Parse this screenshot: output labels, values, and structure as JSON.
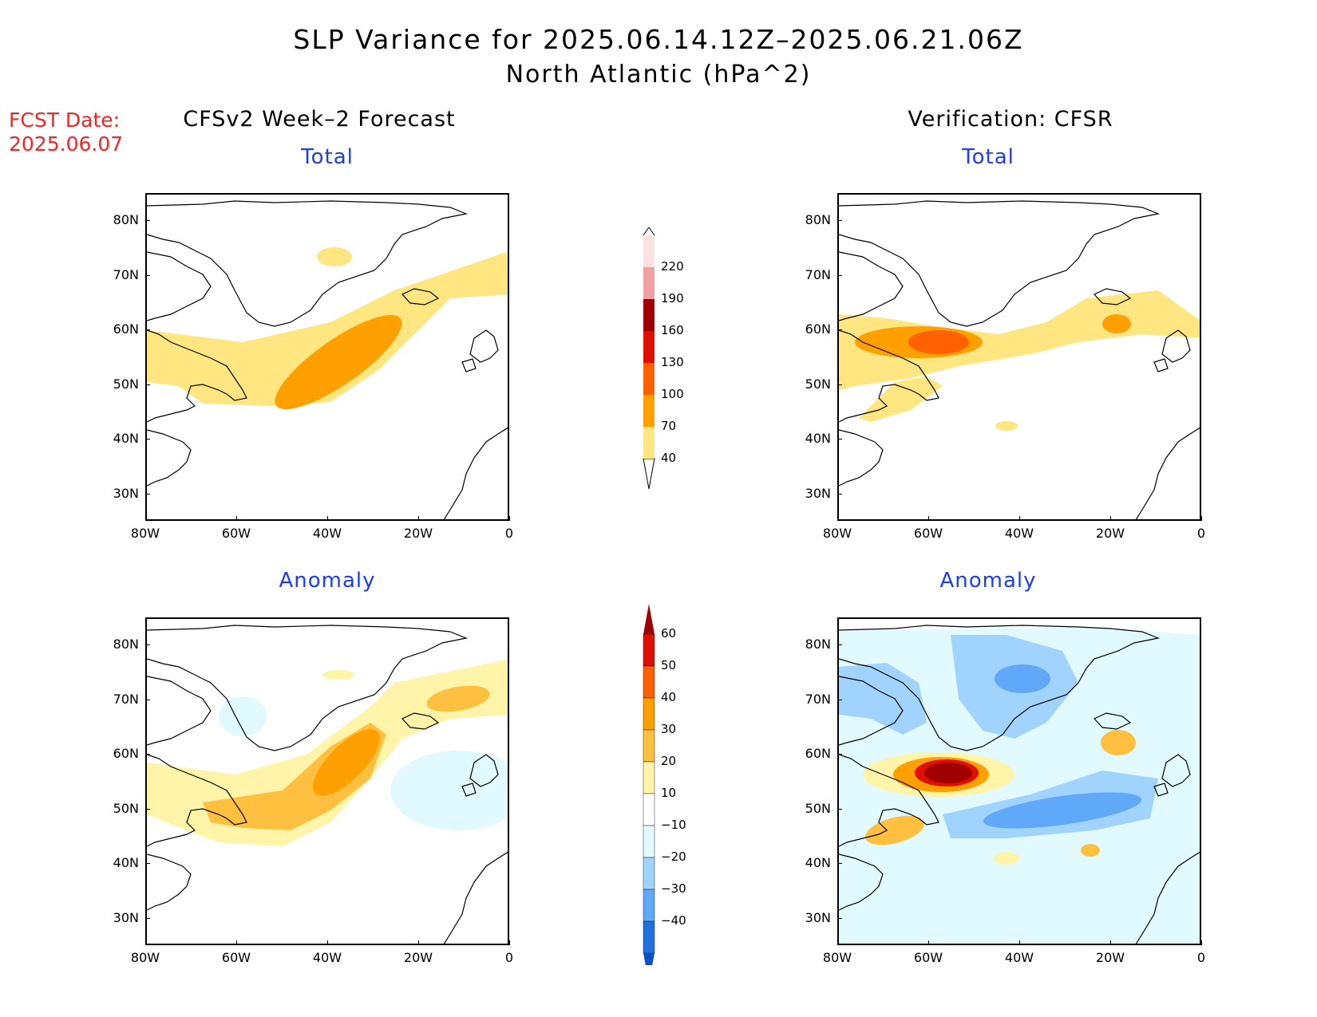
{
  "title": {
    "line1": "SLP Variance for 2025.06.14.12Z–2025.06.21.06Z",
    "line2": "North Atlantic (hPa^2)"
  },
  "fcst_date": {
    "label": "FCST Date:",
    "value": "2025.06.07"
  },
  "columns": {
    "left": "CFSv2 Week–2 Forecast",
    "right": "Verification: CFSR"
  },
  "subtitles": {
    "total": "Total",
    "anomaly": "Anomaly"
  },
  "axes": {
    "lat_labels": [
      "80N",
      "70N",
      "60N",
      "50N",
      "40N",
      "30N"
    ],
    "lat_values": [
      80,
      70,
      60,
      50,
      40,
      30
    ],
    "lon_labels": [
      "80W",
      "60W",
      "40W",
      "20W",
      "0"
    ],
    "lon_values": [
      -80,
      -60,
      -40,
      -20,
      0
    ],
    "lon_range": [
      -80,
      0
    ],
    "lat_range": [
      25,
      85
    ]
  },
  "total_colorbar": {
    "levels": [
      "40",
      "70",
      "100",
      "130",
      "160",
      "190",
      "220"
    ],
    "colors": [
      "#ffe680",
      "#ffa000",
      "#ff6000",
      "#e01000",
      "#a00000",
      "#f0a0a0",
      "#fde0e0"
    ]
  },
  "anomaly_colorbar": {
    "levels": [
      "60",
      "50",
      "40",
      "30",
      "20",
      "10",
      "−10",
      "−20",
      "−30",
      "−40"
    ],
    "colors": [
      "#a00000",
      "#e01000",
      "#ff6000",
      "#ffa000",
      "#ffc040",
      "#fff4a8",
      "#ffffff",
      "#e0faff",
      "#a0d4ff",
      "#60a8f8",
      "#2070e0",
      "#0a50c8"
    ]
  },
  "colors": {
    "title_red": "#ff2020",
    "subtitle_blue": "#1a3cff"
  }
}
